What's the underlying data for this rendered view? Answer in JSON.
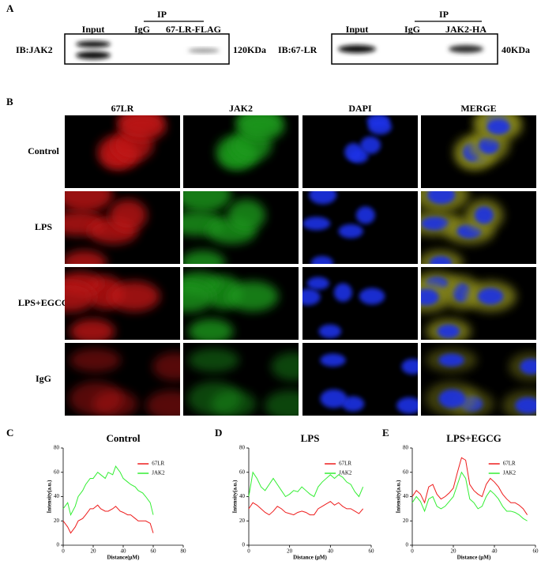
{
  "panel_a": {
    "label": "A",
    "blots": [
      {
        "lanes": [
          "Input",
          "IgG",
          "67-LR-FLAG"
        ],
        "ip": "IP",
        "ib": "IB:JAK2",
        "size": "120KDa"
      },
      {
        "lanes": [
          "Input",
          "IgG",
          "JAK2-HA"
        ],
        "ip": "IP",
        "ib": "IB:67-LR",
        "size": "40KDa"
      }
    ]
  },
  "panel_b": {
    "label": "B",
    "columns": [
      "67LR",
      "JAK2",
      "DAPI",
      "MERGE"
    ],
    "rows": [
      "Control",
      "LPS",
      "LPS+EGCG",
      "IgG"
    ]
  },
  "chart_data": [
    {
      "panel": "C",
      "type": "line",
      "title": "Control",
      "x_label": "Distance(μM)",
      "y_label": "Intensity(a.u.)",
      "x": [
        0,
        3,
        5,
        8,
        10,
        13,
        15,
        18,
        20,
        23,
        25,
        28,
        30,
        33,
        35,
        38,
        40,
        43,
        45,
        48,
        50,
        53,
        55,
        58,
        60
      ],
      "series": [
        {
          "name": "67LR",
          "color": "#ee1c1c",
          "values": [
            20,
            15,
            10,
            15,
            20,
            22,
            25,
            30,
            30,
            33,
            30,
            28,
            28,
            30,
            32,
            28,
            27,
            25,
            25,
            22,
            20,
            20,
            20,
            18,
            10
          ]
        },
        {
          "name": "JAK2",
          "color": "#33ee33",
          "values": [
            30,
            35,
            25,
            32,
            40,
            45,
            50,
            55,
            55,
            60,
            58,
            55,
            60,
            58,
            65,
            60,
            55,
            52,
            50,
            48,
            45,
            43,
            40,
            35,
            25
          ]
        }
      ],
      "xlim": [
        0,
        80
      ],
      "xticks": [
        0,
        20,
        40,
        60,
        80
      ],
      "ylim": [
        0,
        80
      ],
      "yticks": [
        0,
        20,
        40,
        60,
        80
      ]
    },
    {
      "panel": "D",
      "type": "line",
      "title": "LPS",
      "x_label": "Distance (μM)",
      "y_label": "Intensity(a.u.)",
      "x": [
        0,
        2,
        4,
        6,
        8,
        10,
        12,
        14,
        16,
        18,
        20,
        22,
        24,
        26,
        28,
        30,
        32,
        34,
        36,
        38,
        40,
        42,
        44,
        46,
        48,
        50,
        52,
        54,
        56
      ],
      "series": [
        {
          "name": "67LR",
          "color": "#ee1c1c",
          "values": [
            30,
            35,
            33,
            30,
            27,
            25,
            28,
            32,
            30,
            27,
            26,
            25,
            27,
            28,
            27,
            25,
            25,
            30,
            32,
            34,
            36,
            33,
            35,
            32,
            30,
            30,
            28,
            26,
            30
          ]
        },
        {
          "name": "JAK2",
          "color": "#33ee33",
          "values": [
            40,
            60,
            55,
            48,
            45,
            50,
            55,
            50,
            45,
            40,
            42,
            45,
            44,
            48,
            45,
            42,
            40,
            48,
            52,
            55,
            58,
            55,
            58,
            56,
            52,
            50,
            44,
            40,
            48
          ]
        }
      ],
      "xlim": [
        0,
        60
      ],
      "xticks": [
        0,
        20,
        40,
        60
      ],
      "ylim": [
        0,
        80
      ],
      "yticks": [
        0,
        20,
        40,
        60,
        80
      ]
    },
    {
      "panel": "E",
      "type": "line",
      "title": "LPS+EGCG",
      "x_label": "Distance (μM)",
      "y_label": "Intensity(a.u.)",
      "x": [
        0,
        2,
        4,
        6,
        8,
        10,
        12,
        14,
        16,
        18,
        20,
        22,
        24,
        26,
        28,
        30,
        32,
        34,
        36,
        38,
        40,
        42,
        44,
        46,
        48,
        50,
        52,
        54,
        56
      ],
      "series": [
        {
          "name": "67LR",
          "color": "#ee1c1c",
          "values": [
            40,
            45,
            42,
            35,
            48,
            50,
            42,
            38,
            40,
            43,
            47,
            60,
            72,
            70,
            50,
            45,
            42,
            40,
            50,
            55,
            52,
            48,
            42,
            38,
            35,
            35,
            33,
            30,
            25
          ]
        },
        {
          "name": "JAK2",
          "color": "#33ee33",
          "values": [
            35,
            40,
            36,
            28,
            38,
            40,
            32,
            30,
            32,
            36,
            40,
            50,
            60,
            55,
            38,
            35,
            30,
            32,
            40,
            45,
            42,
            38,
            32,
            28,
            28,
            27,
            25,
            22,
            20
          ]
        }
      ],
      "xlim": [
        0,
        60
      ],
      "xticks": [
        0,
        20,
        40,
        60
      ],
      "ylim": [
        0,
        80
      ],
      "yticks": [
        0,
        20,
        40,
        60,
        80
      ]
    }
  ]
}
